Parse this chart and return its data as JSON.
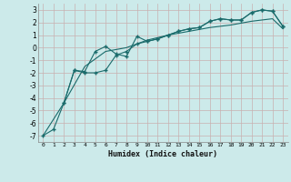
{
  "xlabel": "Humidex (Indice chaleur)",
  "bg_color": "#cceaea",
  "grid_color": "#c8b0b0",
  "line_color": "#1a6b6b",
  "xlim": [
    -0.5,
    23.5
  ],
  "ylim": [
    -7.5,
    3.5
  ],
  "yticks": [
    -7,
    -6,
    -5,
    -4,
    -3,
    -2,
    -1,
    0,
    1,
    2,
    3
  ],
  "xticks": [
    0,
    1,
    2,
    3,
    4,
    5,
    6,
    7,
    8,
    9,
    10,
    11,
    12,
    13,
    14,
    15,
    16,
    17,
    18,
    19,
    20,
    21,
    22,
    23
  ],
  "line1_x": [
    0,
    1,
    2,
    3,
    4,
    5,
    6,
    7,
    8,
    9,
    10,
    11,
    12,
    13,
    14,
    15,
    16,
    17,
    18,
    19,
    20,
    21,
    22,
    23
  ],
  "line1_y": [
    -7.0,
    -6.5,
    -4.4,
    -1.8,
    -1.9,
    -0.3,
    0.1,
    -0.5,
    -0.7,
    0.9,
    0.5,
    0.7,
    1.0,
    1.3,
    1.5,
    1.6,
    2.1,
    2.3,
    2.2,
    2.2,
    2.8,
    3.0,
    2.9,
    1.7
  ],
  "line2_x": [
    2,
    3,
    4,
    5,
    6,
    7,
    8,
    9,
    10,
    11,
    12,
    13,
    14,
    15,
    16,
    17,
    18,
    19,
    20,
    21,
    22,
    23
  ],
  "line2_y": [
    -4.4,
    -1.8,
    -2.0,
    -2.0,
    -1.8,
    -0.6,
    -0.3,
    0.3,
    0.5,
    0.7,
    1.0,
    1.3,
    1.5,
    1.6,
    2.1,
    2.3,
    2.2,
    2.2,
    2.8,
    3.0,
    2.9,
    1.7
  ],
  "line3_x": [
    0,
    2,
    4,
    6,
    8,
    10,
    12,
    14,
    16,
    18,
    20,
    22,
    23
  ],
  "line3_y": [
    -7.0,
    -4.4,
    -1.5,
    -0.3,
    0.0,
    0.6,
    1.0,
    1.3,
    1.6,
    1.8,
    2.1,
    2.3,
    1.5
  ]
}
